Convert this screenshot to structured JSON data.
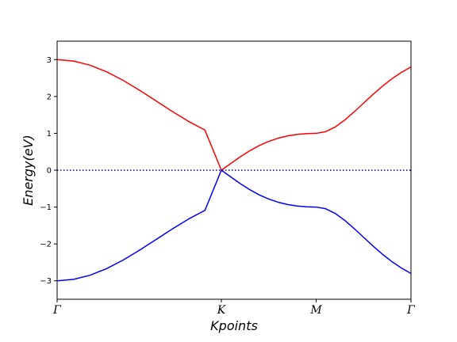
{
  "chart_data": {
    "type": "line",
    "title": "",
    "xlabel": "Kpoints",
    "ylabel": "Energy(eV)",
    "xticks": [
      {
        "label": "Γ",
        "position": 0
      },
      {
        "label": "K",
        "position": 1.7321
      },
      {
        "label": "M",
        "position": 2.7321
      },
      {
        "label": "Γ",
        "position": 3.7321
      }
    ],
    "xlim": [
      0,
      3.7321
    ],
    "ylim": [
      -3.5,
      3.5
    ],
    "yticks": [
      -3,
      -2,
      -1,
      0,
      1,
      2,
      3
    ],
    "ytick_labels": [
      "−3",
      "−2",
      "−1",
      "0",
      "1",
      "2",
      "3"
    ],
    "grid": false,
    "fermi_level": {
      "y": 0,
      "style": "dotted",
      "color": "#00008b"
    },
    "series": [
      {
        "color": "#ff0000",
        "x": [
          0,
          0.1732,
          0.3464,
          0.5196,
          0.6928,
          0.866,
          1.0392,
          1.2124,
          1.3856,
          1.5588,
          1.7321,
          1.8321,
          1.9321,
          2.0321,
          2.1321,
          2.2321,
          2.3321,
          2.4321,
          2.5321,
          2.6321,
          2.7321,
          2.8321,
          2.9321,
          3.0321,
          3.1321,
          3.2321,
          3.3321,
          3.4321,
          3.5321,
          3.6321,
          3.7321
        ],
        "values": [
          3.0,
          2.961,
          2.849,
          2.672,
          2.442,
          2.175,
          1.887,
          1.597,
          1.325,
          1.089,
          0.0,
          0.183,
          0.364,
          0.528,
          0.669,
          0.783,
          0.869,
          0.931,
          0.971,
          0.993,
          1.0,
          1.045,
          1.171,
          1.358,
          1.581,
          1.82,
          2.057,
          2.281,
          2.482,
          2.655,
          2.8
        ]
      },
      {
        "color": "#0000ff",
        "x": [
          0,
          0.1732,
          0.3464,
          0.5196,
          0.6928,
          0.866,
          1.0392,
          1.2124,
          1.3856,
          1.5588,
          1.7321,
          1.8321,
          1.9321,
          2.0321,
          2.1321,
          2.2321,
          2.3321,
          2.4321,
          2.5321,
          2.6321,
          2.7321,
          2.8321,
          2.9321,
          3.0321,
          3.1321,
          3.2321,
          3.3321,
          3.4321,
          3.5321,
          3.6321,
          3.7321
        ],
        "values": [
          -3.0,
          -2.961,
          -2.849,
          -2.672,
          -2.442,
          -2.175,
          -1.887,
          -1.597,
          -1.325,
          -1.089,
          0.0,
          -0.183,
          -0.364,
          -0.528,
          -0.669,
          -0.783,
          -0.869,
          -0.931,
          -0.971,
          -0.993,
          -1.0,
          -1.045,
          -1.171,
          -1.358,
          -1.581,
          -1.82,
          -2.057,
          -2.281,
          -2.482,
          -2.655,
          -2.8
        ]
      }
    ]
  },
  "colors": {
    "axis": "#000000",
    "band_upper": "#ff0000",
    "band_lower": "#0000ff",
    "fermi": "#00008b"
  }
}
